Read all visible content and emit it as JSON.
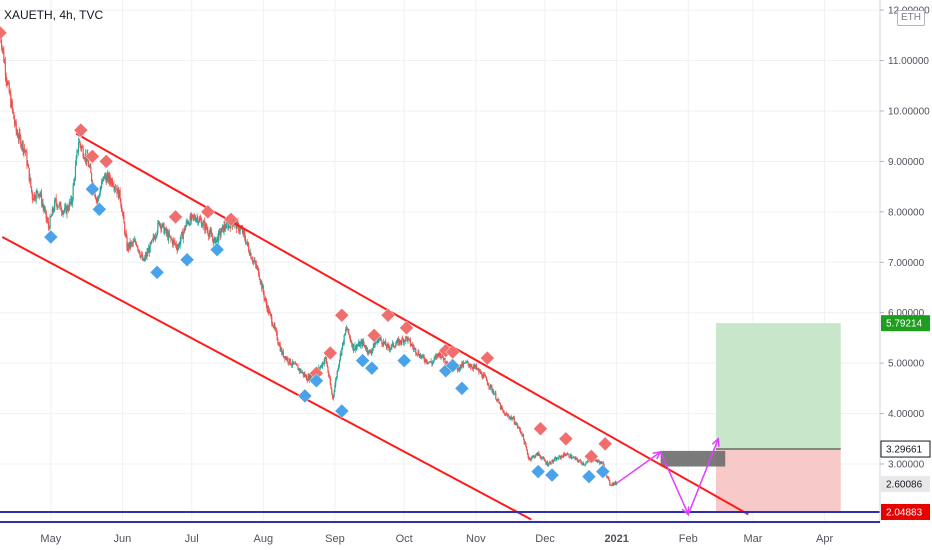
{
  "header": {
    "title": "XAUETH, 4h, TVC",
    "currency": "ETH"
  },
  "colors": {
    "bullish": "#26a69a",
    "bearish": "#ef5350",
    "channel": "#ff1a1a",
    "arrow": "#e040fb",
    "support": "#2f2fb0",
    "peak_marker": "#f06e6e",
    "trough_marker": "#4aa3e8",
    "profit_zone": "#c8e6c9",
    "loss_zone": "#f8c9c9",
    "entry_zone": "#6d6d6d",
    "price_tag_green": "#1e9e1e",
    "price_tag_red": "#e60000"
  },
  "chart_data": {
    "type": "candlestick",
    "title": "XAUETH, 4h, TVC",
    "ylim": [
      1.85,
      12.2
    ],
    "y_ticks": [
      "12.00000",
      "11.00000",
      "10.00000",
      "9.00000",
      "8.00000",
      "7.00000",
      "6.00000",
      "5.00000",
      "4.00000",
      "3.00000"
    ],
    "x_tick_labels": [
      "May",
      "Jun",
      "Jul",
      "Aug",
      "Sep",
      "Oct",
      "Nov",
      "Dec",
      "2021",
      "Feb",
      "Mar",
      "Apr"
    ],
    "x_ticks": [
      "2020-05-01",
      "2020-06-01",
      "2020-07-01",
      "2020-08-01",
      "2020-09-01",
      "2020-10-01",
      "2020-11-01",
      "2020-12-01",
      "2021-01-01",
      "2021-02-01",
      "2021-03-01",
      "2021-04-01"
    ],
    "xlim": [
      "2020-04-09",
      "2021-04-25"
    ],
    "price_path": [
      [
        "2020-04-09",
        11.6
      ],
      [
        "2020-04-12",
        10.6
      ],
      [
        "2020-04-16",
        9.6
      ],
      [
        "2020-04-20",
        9.2
      ],
      [
        "2020-04-23",
        8.3
      ],
      [
        "2020-04-26",
        8.4
      ],
      [
        "2020-04-30",
        7.7
      ],
      [
        "2020-05-03",
        8.2
      ],
      [
        "2020-05-07",
        8.0
      ],
      [
        "2020-05-10",
        8.2
      ],
      [
        "2020-05-13",
        9.4
      ],
      [
        "2020-05-17",
        9.0
      ],
      [
        "2020-05-21",
        8.2
      ],
      [
        "2020-05-24",
        8.7
      ],
      [
        "2020-05-28",
        8.6
      ],
      [
        "2020-05-31",
        8.3
      ],
      [
        "2020-06-03",
        7.3
      ],
      [
        "2020-06-07",
        7.4
      ],
      [
        "2020-06-10",
        7.0
      ],
      [
        "2020-06-14",
        7.4
      ],
      [
        "2020-06-17",
        7.8
      ],
      [
        "2020-06-21",
        7.5
      ],
      [
        "2020-06-25",
        7.3
      ],
      [
        "2020-06-29",
        7.8
      ],
      [
        "2020-07-03",
        7.9
      ],
      [
        "2020-07-07",
        7.7
      ],
      [
        "2020-07-11",
        7.4
      ],
      [
        "2020-07-15",
        7.7
      ],
      [
        "2020-07-19",
        7.8
      ],
      [
        "2020-07-23",
        7.6
      ],
      [
        "2020-07-27",
        7.1
      ],
      [
        "2020-07-30",
        6.8
      ],
      [
        "2020-08-02",
        6.2
      ],
      [
        "2020-08-05",
        5.8
      ],
      [
        "2020-08-09",
        5.2
      ],
      [
        "2020-08-13",
        5.0
      ],
      [
        "2020-08-16",
        4.9
      ],
      [
        "2020-08-20",
        4.7
      ],
      [
        "2020-08-24",
        4.8
      ],
      [
        "2020-08-28",
        5.1
      ],
      [
        "2020-08-31",
        4.3
      ],
      [
        "2020-09-03",
        5.1
      ],
      [
        "2020-09-06",
        5.7
      ],
      [
        "2020-09-09",
        5.3
      ],
      [
        "2020-09-13",
        5.4
      ],
      [
        "2020-09-16",
        5.2
      ],
      [
        "2020-09-20",
        5.5
      ],
      [
        "2020-09-24",
        5.3
      ],
      [
        "2020-09-28",
        5.4
      ],
      [
        "2020-10-02",
        5.5
      ],
      [
        "2020-10-05",
        5.3
      ],
      [
        "2020-10-09",
        5.1
      ],
      [
        "2020-10-13",
        5.0
      ],
      [
        "2020-10-16",
        5.2
      ],
      [
        "2020-10-20",
        5.0
      ],
      [
        "2020-10-24",
        4.9
      ],
      [
        "2020-10-28",
        5.0
      ],
      [
        "2020-11-01",
        4.9
      ],
      [
        "2020-11-05",
        4.7
      ],
      [
        "2020-11-09",
        4.4
      ],
      [
        "2020-11-13",
        4.0
      ],
      [
        "2020-11-17",
        3.9
      ],
      [
        "2020-11-21",
        3.6
      ],
      [
        "2020-11-24",
        3.1
      ],
      [
        "2020-11-28",
        3.2
      ],
      [
        "2020-12-02",
        3.0
      ],
      [
        "2020-12-06",
        3.1
      ],
      [
        "2020-12-10",
        3.2
      ],
      [
        "2020-12-14",
        3.1
      ],
      [
        "2020-12-18",
        3.0
      ],
      [
        "2020-12-22",
        3.1
      ],
      [
        "2020-12-26",
        3.0
      ],
      [
        "2020-12-29",
        2.6
      ],
      [
        "2021-01-01",
        2.62
      ]
    ],
    "channel_upper": [
      [
        "2020-05-12",
        9.55
      ],
      [
        "2021-02-27",
        2.0
      ]
    ],
    "channel_lower": [
      [
        "2020-04-10",
        7.5
      ],
      [
        "2020-11-25",
        1.9
      ]
    ],
    "support_level": 2.04883,
    "projection_arrow": [
      [
        "2021-01-01",
        2.62
      ],
      [
        "2021-01-20",
        3.24
      ],
      [
        "2021-02-01",
        2.0
      ],
      [
        "2021-02-14",
        3.5
      ]
    ],
    "entry_zone": {
      "from": "2021-01-20",
      "to": "2021-02-17",
      "low": 2.95,
      "high": 3.26
    },
    "take_profit_zone": {
      "from": "2021-02-13",
      "to": "2021-04-08",
      "low": 3.29661,
      "high": 5.79214
    },
    "stop_loss_zone": {
      "from": "2021-02-13",
      "to": "2021-04-08",
      "low": 2.04883,
      "high": 3.29661
    },
    "peak_markers": [
      [
        "2020-04-09",
        11.55
      ],
      [
        "2020-05-14",
        9.62
      ],
      [
        "2020-05-19",
        9.1
      ],
      [
        "2020-05-25",
        9.0
      ],
      [
        "2020-06-24",
        7.9
      ],
      [
        "2020-07-08",
        8.0
      ],
      [
        "2020-07-18",
        7.85
      ],
      [
        "2020-08-24",
        4.8
      ],
      [
        "2020-08-30",
        5.2
      ],
      [
        "2020-09-04",
        5.95
      ],
      [
        "2020-09-18",
        5.55
      ],
      [
        "2020-09-24",
        5.95
      ],
      [
        "2020-10-02",
        5.7
      ],
      [
        "2020-10-19",
        5.25
      ],
      [
        "2020-10-22",
        5.22
      ],
      [
        "2020-11-06",
        5.1
      ],
      [
        "2020-11-29",
        3.7
      ],
      [
        "2020-12-10",
        3.5
      ],
      [
        "2020-12-21",
        3.15
      ],
      [
        "2020-12-27",
        3.4
      ]
    ],
    "trough_markers": [
      [
        "2020-05-01",
        7.5
      ],
      [
        "2020-05-19",
        8.45
      ],
      [
        "2020-05-22",
        8.05
      ],
      [
        "2020-06-16",
        6.8
      ],
      [
        "2020-06-29",
        7.05
      ],
      [
        "2020-07-12",
        7.25
      ],
      [
        "2020-08-19",
        4.35
      ],
      [
        "2020-08-24",
        4.65
      ],
      [
        "2020-09-04",
        4.05
      ],
      [
        "2020-09-13",
        5.05
      ],
      [
        "2020-09-17",
        4.9
      ],
      [
        "2020-10-01",
        5.05
      ],
      [
        "2020-10-19",
        4.85
      ],
      [
        "2020-10-22",
        4.95
      ],
      [
        "2020-10-26",
        4.5
      ],
      [
        "2020-11-28",
        2.85
      ],
      [
        "2020-12-04",
        2.78
      ],
      [
        "2020-12-20",
        2.75
      ],
      [
        "2020-12-26",
        2.85
      ]
    ],
    "price_labels": [
      {
        "text": "5.79214",
        "value": 5.79214,
        "style": "green"
      },
      {
        "text": "3.29661",
        "value": 3.29661,
        "style": "black"
      },
      {
        "text": "2.60086",
        "value": 2.60086,
        "style": "gray"
      },
      {
        "text": "2.04883",
        "value": 2.04883,
        "style": "red"
      }
    ]
  }
}
